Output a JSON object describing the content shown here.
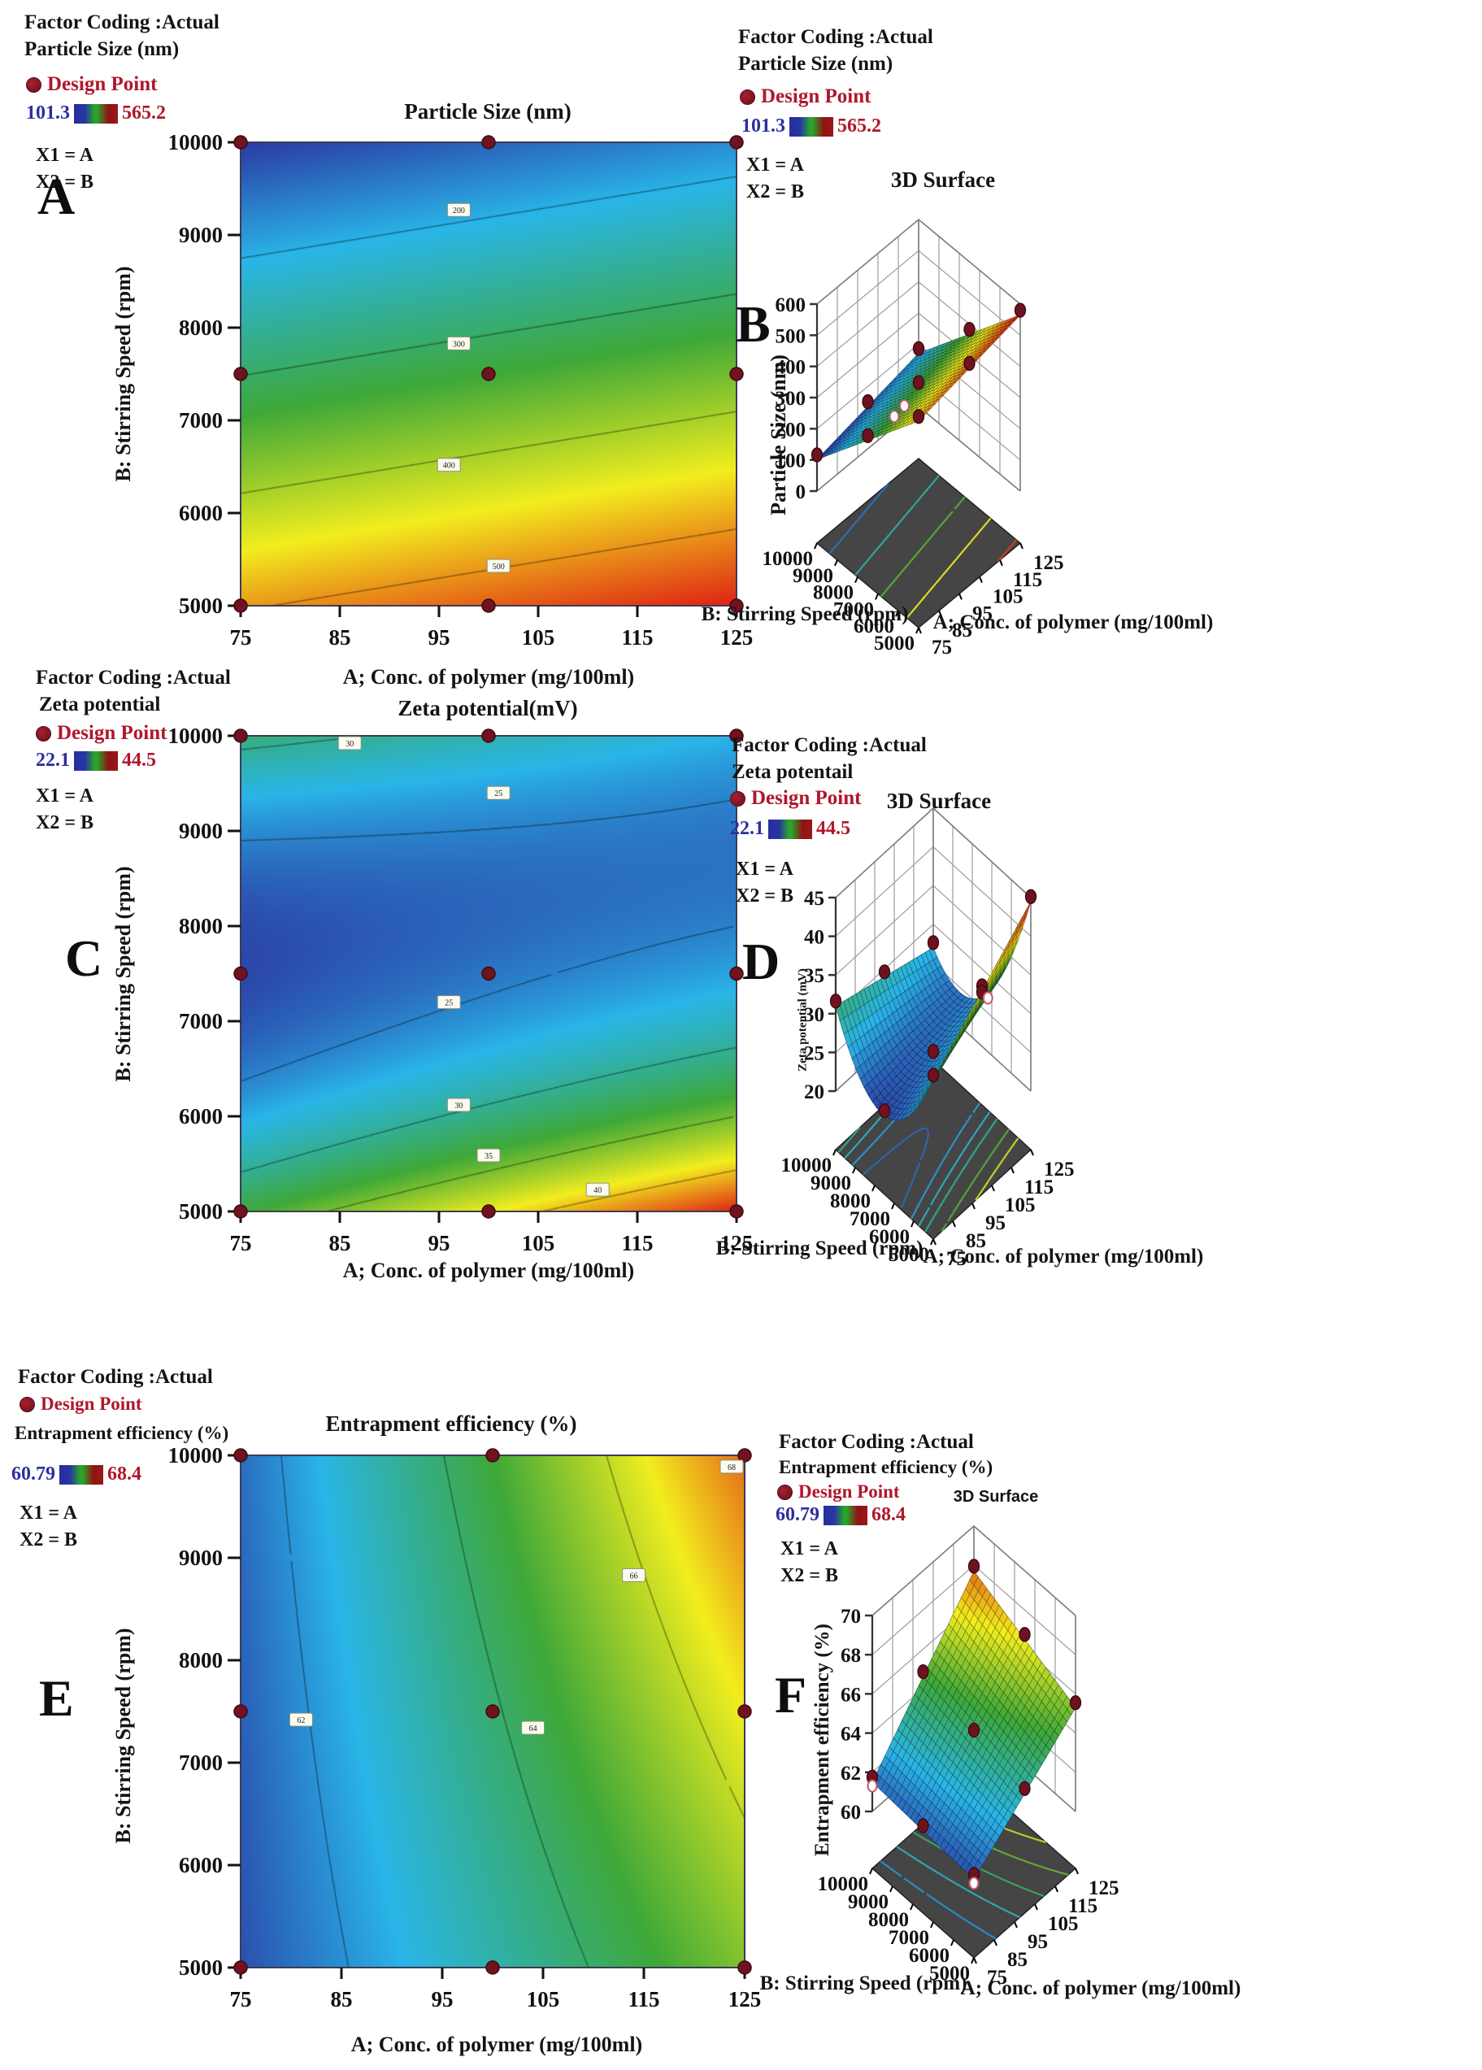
{
  "figure": {
    "panels": {
      "A": {
        "letter": "A",
        "type": "contour",
        "header1": "Factor Coding :Actual",
        "header2": "Particle Size (nm)",
        "dp_label": "Design Point",
        "legend_min": "101.3",
        "legend_max": "565.2",
        "x1": "X1 = A",
        "x2": "X2 = B",
        "title": "Particle Size (nm)",
        "xlabel": "A; Conc. of polymer (mg/100ml)",
        "ylabel": "B: Stirring Speed (rpm)",
        "x_ticks": [
          75,
          85,
          95,
          105,
          115,
          125
        ],
        "y_ticks": [
          5000,
          6000,
          7000,
          8000,
          9000,
          10000
        ],
        "contour_levels": [
          200,
          300,
          400,
          500
        ],
        "contour_labels": [
          {
            "level": 200,
            "a": 97,
            "b": 9270
          },
          {
            "level": 300,
            "a": 97,
            "b": 7830
          },
          {
            "level": 400,
            "a": 96,
            "b": 6520
          },
          {
            "level": 500,
            "a": 101,
            "b": 5430
          }
        ],
        "design_points": [
          [
            75,
            5000
          ],
          [
            100,
            5000
          ],
          [
            125,
            5000
          ],
          [
            75,
            7500
          ],
          [
            100,
            7500
          ],
          [
            125,
            7500
          ],
          [
            75,
            10000
          ],
          [
            100,
            10000
          ],
          [
            125,
            10000
          ]
        ],
        "model": {
          "c0": 333.25,
          "cu": 34.79,
          "cv": -197.16,
          "cuv": 0,
          "cvv": 0,
          "clip": [
            101.3,
            565.2
          ],
          "u": "(A-100)/25",
          "v": "(B-7500)/2500"
        }
      },
      "B": {
        "letter": "B",
        "type": "surface",
        "header1": "Factor Coding :Actual",
        "header2": "Particle Size (nm)",
        "dp_label": "Design Point",
        "legend_min": "101.3",
        "legend_max": "565.2",
        "x1": "X1 = A",
        "x2": "X2 = B",
        "title": "3D Surface",
        "zlabel": "Particle Size (nm)",
        "xlabel": "A; Conc. of polymer (mg/100ml)",
        "ylabel": "B: Stirring Speed (rpm)",
        "x_ticks": [
          75,
          85,
          95,
          105,
          115,
          125
        ],
        "y_ticks": [
          10000,
          9000,
          8000,
          7000,
          6000,
          5000
        ],
        "z_ticks": [
          0,
          100,
          200,
          300,
          400,
          500,
          600
        ],
        "floor_levels": [
          150,
          250,
          350,
          450,
          550
        ],
        "design_points": [
          [
            75,
            5000
          ],
          [
            100,
            5000
          ],
          [
            125,
            5000
          ],
          [
            75,
            7500
          ],
          [
            100,
            7500
          ],
          [
            125,
            7500
          ],
          [
            75,
            10000
          ],
          [
            100,
            10000
          ],
          [
            125,
            10000
          ]
        ],
        "open_points": [
          [
            88,
            7500
          ],
          [
            93,
            7500
          ]
        ],
        "model": {
          "c0": 333.25,
          "cu": 34.79,
          "cv": -197.16,
          "cuv": 0,
          "cvv": 0,
          "clip": [
            101.3,
            565.2
          ],
          "u": "(A-100)/25",
          "v": "(B-7500)/2500"
        }
      },
      "C": {
        "letter": "C",
        "type": "contour",
        "header1": "Factor Coding :Actual",
        "header2": "Zeta potential",
        "dp_label": "Design Point",
        "legend_min": "22.1",
        "legend_max": "44.5",
        "x1": "X1 = A",
        "x2": "X2 = B",
        "title": "Zeta potential(mV)",
        "xlabel": "A; Conc. of polymer (mg/100ml)",
        "ylabel": "B: Stirring Speed (rpm)",
        "x_ticks": [
          75,
          85,
          95,
          105,
          115,
          125
        ],
        "y_ticks": [
          5000,
          6000,
          7000,
          8000,
          9000,
          10000
        ],
        "contour_levels": [
          25,
          30,
          35,
          40
        ],
        "contour_labels": [
          {
            "level": 30,
            "a": 86,
            "b": 9930
          },
          {
            "level": 25,
            "a": 101,
            "b": 9400
          },
          {
            "level": 25,
            "a": 96,
            "b": 7200
          },
          {
            "level": 30,
            "a": 97,
            "b": 6120
          },
          {
            "level": 35,
            "a": 100,
            "b": 5590
          },
          {
            "level": 40,
            "a": 111,
            "b": 5230
          }
        ],
        "design_points": [
          [
            75,
            5000
          ],
          [
            100,
            5000
          ],
          [
            125,
            5000
          ],
          [
            75,
            7500
          ],
          [
            100,
            7500
          ],
          [
            125,
            7500
          ],
          [
            75,
            10000
          ],
          [
            100,
            10000
          ],
          [
            125,
            10000
          ]
        ],
        "model": {
          "c0": 24.5,
          "cu": 1.875,
          "cv": -4.875,
          "cuv": -3.875,
          "cvv": 9.375,
          "clip": [
            22.1,
            44.5
          ],
          "u": "(A-100)/25",
          "v": "(B-7500)/2500"
        }
      },
      "D": {
        "letter": "D",
        "type": "surface",
        "header1": "Factor Coding :Actual",
        "header2": "Zeta potentail",
        "dp_label": "Design Point",
        "legend_min": "22.1",
        "legend_max": "44.5",
        "x1": "X1 = A",
        "x2": "X2 = B",
        "title": "3D Surface",
        "zlabel": "Zeta potential (mV)",
        "xlabel": "A; Conc. of polymer (mg/100ml)",
        "ylabel": "B: Stirring Speed (rpm)",
        "x_ticks": [
          75,
          85,
          95,
          105,
          115,
          125
        ],
        "y_ticks": [
          10000,
          9000,
          8000,
          7000,
          6000,
          5000
        ],
        "z_ticks": [
          20,
          25,
          30,
          35,
          40,
          45
        ],
        "floor_levels": [
          24,
          26,
          28,
          30,
          34,
          38
        ],
        "design_points": [
          [
            75,
            5000
          ],
          [
            100,
            5000
          ],
          [
            125,
            5000
          ],
          [
            75,
            7500
          ],
          [
            100,
            7500
          ],
          [
            125,
            7500
          ],
          [
            75,
            10000
          ],
          [
            100,
            10000
          ],
          [
            125,
            10000
          ]
        ],
        "open_points": [
          [
            113,
            6000
          ]
        ],
        "model": {
          "c0": 24.5,
          "cu": 1.875,
          "cv": -4.875,
          "cuv": -3.875,
          "cvv": 9.375,
          "clip": [
            22.1,
            44.5
          ],
          "u": "(A-100)/25",
          "v": "(B-7500)/2500"
        }
      },
      "E": {
        "letter": "E",
        "type": "contour",
        "header1": "Factor Coding :Actual",
        "header2": "Entrapment efficiency (%)",
        "dp_label": "Design Point",
        "legend_min": "60.79",
        "legend_max": "68.4",
        "x1": "X1 = A",
        "x2": "X2 = B",
        "title": "Entrapment efficiency (%)",
        "xlabel": "A; Conc. of polymer (mg/100ml)",
        "ylabel": "B: Stirring Speed (rpm)",
        "x_ticks": [
          75,
          85,
          95,
          105,
          115,
          125
        ],
        "y_ticks": [
          5000,
          6000,
          7000,
          8000,
          9000,
          10000
        ],
        "contour_levels": [
          62,
          64,
          66,
          68
        ],
        "contour_labels": [
          {
            "level": 62,
            "a": 81,
            "b": 7420
          },
          {
            "level": 64,
            "a": 104,
            "b": 7340
          },
          {
            "level": 66,
            "a": 114,
            "b": 8830
          },
          {
            "level": 68,
            "a": 124,
            "b": 9890
          }
        ],
        "design_points": [
          [
            75,
            5000
          ],
          [
            100,
            5000
          ],
          [
            125,
            5000
          ],
          [
            75,
            7500
          ],
          [
            100,
            7500
          ],
          [
            125,
            7500
          ],
          [
            75,
            10000
          ],
          [
            100,
            10000
          ],
          [
            125,
            10000
          ]
        ],
        "model": {
          "c0": 63.9,
          "cu": 2.6,
          "cv": 0.7,
          "cuv": 0.5,
          "cvv": 0,
          "clip": [
            60.79,
            68.4
          ],
          "u": "(A-100)/25",
          "v": "(B-7500)/2500"
        }
      },
      "F": {
        "letter": "F",
        "type": "surface",
        "header1": "Factor Coding :Actual",
        "header2": "Entrapment efficiency (%)",
        "dp_label": "Design Point",
        "legend_min": "60.79",
        "legend_max": "68.4",
        "x1": "X1 = A",
        "x2": "X2 = B",
        "title": "3D Surface",
        "zlabel": "Entrapment efficiency (%)",
        "xlabel": "A; Conc. of polymer (mg/100ml)",
        "ylabel": "B: Stirring Speed (rpm)",
        "x_ticks": [
          75,
          85,
          95,
          105,
          115,
          125
        ],
        "y_ticks": [
          10000,
          9000,
          8000,
          7000,
          6000,
          5000
        ],
        "z_ticks": [
          60,
          62,
          64,
          66,
          68,
          70
        ],
        "floor_levels": [
          62,
          63,
          64,
          65,
          66
        ],
        "design_points": [
          [
            75,
            5000
          ],
          [
            100,
            5000
          ],
          [
            125,
            5000
          ],
          [
            75,
            7500
          ],
          [
            100,
            7500
          ],
          [
            125,
            7500
          ],
          [
            75,
            10000
          ],
          [
            100,
            10000
          ],
          [
            125,
            10000
          ]
        ],
        "open_points": [
          [
            75,
            10000
          ],
          [
            75,
            5000
          ]
        ],
        "model": {
          "c0": 63.9,
          "cu": 2.6,
          "cv": 0.7,
          "cuv": 0.5,
          "cvv": 0,
          "clip": [
            60.79,
            68.4
          ],
          "u": "(A-100)/25",
          "v": "(B-7500)/2500"
        }
      }
    }
  },
  "chart_data": [
    {
      "id": "A",
      "type": "heatmap",
      "subtype": "2d-contour",
      "title": "Particle Size (nm)",
      "xlabel": "A; Conc. of polymer (mg/100ml)",
      "ylabel": "B: Stirring Speed (rpm)",
      "x_range": [
        75,
        125
      ],
      "y_range": [
        5000,
        10000
      ],
      "z_range": [
        101.3,
        565.2
      ],
      "x_ticks": [
        75,
        85,
        95,
        105,
        115,
        125
      ],
      "y_ticks": [
        5000,
        6000,
        7000,
        8000,
        9000,
        10000
      ],
      "contour_levels": [
        200,
        300,
        400,
        500
      ],
      "design_points_a": [
        75,
        100,
        125
      ],
      "design_points_b": [
        5000,
        7500,
        10000
      ],
      "z_grid": {
        "a": [
          75,
          100,
          125
        ],
        "b": [
          5000,
          7500,
          10000
        ],
        "values": [
          [
            495.6,
            530.4,
            565.2
          ],
          [
            298.5,
            333.3,
            368.0
          ],
          [
            101.3,
            136.1,
            170.9
          ]
        ]
      }
    },
    {
      "id": "B",
      "type": "heatmap",
      "subtype": "3d-surface",
      "title": "3D Surface",
      "zlabel": "Particle Size (nm)",
      "xlabel": "A; Conc. of polymer (mg/100ml)",
      "ylabel": "B: Stirring Speed (rpm)",
      "z_axis_range": [
        0,
        600
      ],
      "z_ticks": [
        0,
        100,
        200,
        300,
        400,
        500,
        600
      ],
      "legend_range": [
        101.3,
        565.2
      ],
      "z_grid": {
        "a": [
          75,
          100,
          125
        ],
        "b": [
          5000,
          7500,
          10000
        ],
        "values": [
          [
            495.6,
            530.4,
            565.2
          ],
          [
            298.5,
            333.3,
            368.0
          ],
          [
            101.3,
            136.1,
            170.9
          ]
        ]
      }
    },
    {
      "id": "C",
      "type": "heatmap",
      "subtype": "2d-contour",
      "title": "Zeta potential(mV)",
      "xlabel": "A; Conc. of polymer (mg/100ml)",
      "ylabel": "B: Stirring Speed (rpm)",
      "x_range": [
        75,
        125
      ],
      "y_range": [
        5000,
        10000
      ],
      "z_range": [
        22.1,
        44.5
      ],
      "contour_levels": [
        25,
        30,
        35,
        40
      ],
      "z_grid": {
        "a": [
          75,
          100,
          125
        ],
        "b": [
          5000,
          7500,
          10000
        ],
        "values": [
          [
            33.0,
            38.8,
            44.5
          ],
          [
            22.6,
            24.5,
            26.4
          ],
          [
            31.0,
            29.0,
            27.0
          ]
        ]
      }
    },
    {
      "id": "D",
      "type": "heatmap",
      "subtype": "3d-surface",
      "title": "3D Surface",
      "zlabel": "Zeta potential (mV)",
      "xlabel": "A; Conc. of polymer (mg/100ml)",
      "ylabel": "B: Stirring Speed (rpm)",
      "z_axis_range": [
        20,
        45
      ],
      "z_ticks": [
        20,
        25,
        30,
        35,
        40,
        45
      ],
      "legend_range": [
        22.1,
        44.5
      ],
      "z_grid": {
        "a": [
          75,
          100,
          125
        ],
        "b": [
          5000,
          7500,
          10000
        ],
        "values": [
          [
            33.0,
            38.8,
            44.5
          ],
          [
            22.6,
            24.5,
            26.4
          ],
          [
            31.0,
            29.0,
            27.0
          ]
        ]
      }
    },
    {
      "id": "E",
      "type": "heatmap",
      "subtype": "2d-contour",
      "title": "Entrapment efficiency (%)",
      "xlabel": "A; Conc. of polymer (mg/100ml)",
      "ylabel": "B: Stirring Speed (rpm)",
      "x_range": [
        75,
        125
      ],
      "y_range": [
        5000,
        10000
      ],
      "z_range": [
        60.79,
        68.4
      ],
      "contour_levels": [
        62,
        64,
        66,
        68
      ],
      "z_grid": {
        "a": [
          75,
          100,
          125
        ],
        "b": [
          5000,
          7500,
          10000
        ],
        "values": [
          [
            61.1,
            63.2,
            65.3
          ],
          [
            61.3,
            63.9,
            66.5
          ],
          [
            61.5,
            64.6,
            68.1
          ]
        ]
      }
    },
    {
      "id": "F",
      "type": "heatmap",
      "subtype": "3d-surface",
      "title": "3D Surface",
      "zlabel": "Entrapment efficiency (%)",
      "xlabel": "A; Conc. of polymer (mg/100ml)",
      "ylabel": "B: Stirring Speed (rpm)",
      "z_axis_range": [
        60,
        70
      ],
      "z_ticks": [
        60,
        62,
        64,
        66,
        68,
        70
      ],
      "legend_range": [
        60.79,
        68.4
      ],
      "z_grid": {
        "a": [
          75,
          100,
          125
        ],
        "b": [
          5000,
          7500,
          10000
        ],
        "values": [
          [
            61.1,
            63.2,
            65.3
          ],
          [
            61.3,
            63.9,
            66.5
          ],
          [
            61.5,
            64.6,
            68.1
          ]
        ]
      }
    }
  ]
}
